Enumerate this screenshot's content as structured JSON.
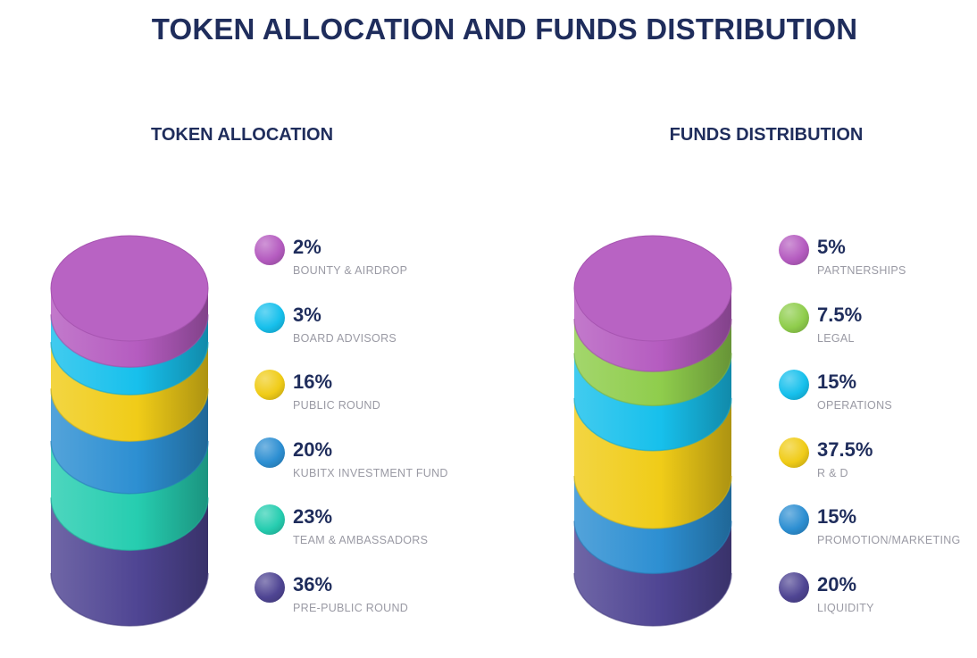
{
  "title": "TOKEN ALLOCATION AND FUNDS DISTRIBUTION",
  "chart_data": [
    {
      "type": "stacked-cylinder",
      "title": "TOKEN ALLOCATION",
      "unit": "%",
      "series": [
        {
          "label": "BOUNTY & AIRDROP",
          "value": 2,
          "display": "2%",
          "color": "#b55cc0"
        },
        {
          "label": "BOARD ADVISORS",
          "value": 3,
          "display": "3%",
          "color": "#17c0ec"
        },
        {
          "label": "PUBLIC ROUND",
          "value": 16,
          "display": "16%",
          "color": "#f0cc18"
        },
        {
          "label": "KUBITX INVESTMENT FUND",
          "value": 20,
          "display": "20%",
          "color": "#2d8fd2"
        },
        {
          "label": "TEAM & AMBASSADORS",
          "value": 23,
          "display": "23%",
          "color": "#26cdb0"
        },
        {
          "label": "PRE-PUBLIC ROUND",
          "value": 36,
          "display": "36%",
          "color": "#4f4593"
        }
      ]
    },
    {
      "type": "stacked-cylinder",
      "title": "FUNDS DISTRIBUTION",
      "unit": "%",
      "series": [
        {
          "label": "PARTNERSHIPS",
          "value": 5,
          "display": "5%",
          "color": "#b55cc0"
        },
        {
          "label": "LEGAL",
          "value": 7.5,
          "display": "7.5%",
          "color": "#8fcd4c"
        },
        {
          "label": "OPERATIONS",
          "value": 15,
          "display": "15%",
          "color": "#17c0ec"
        },
        {
          "label": "R & D",
          "value": 37.5,
          "display": "37.5%",
          "color": "#f0cc18"
        },
        {
          "label": "PROMOTION/MARKETING",
          "value": 15,
          "display": "15%",
          "color": "#2d8fd2"
        },
        {
          "label": "LIQUIDITY",
          "value": 20,
          "display": "20%",
          "color": "#4f4593"
        }
      ]
    }
  ]
}
